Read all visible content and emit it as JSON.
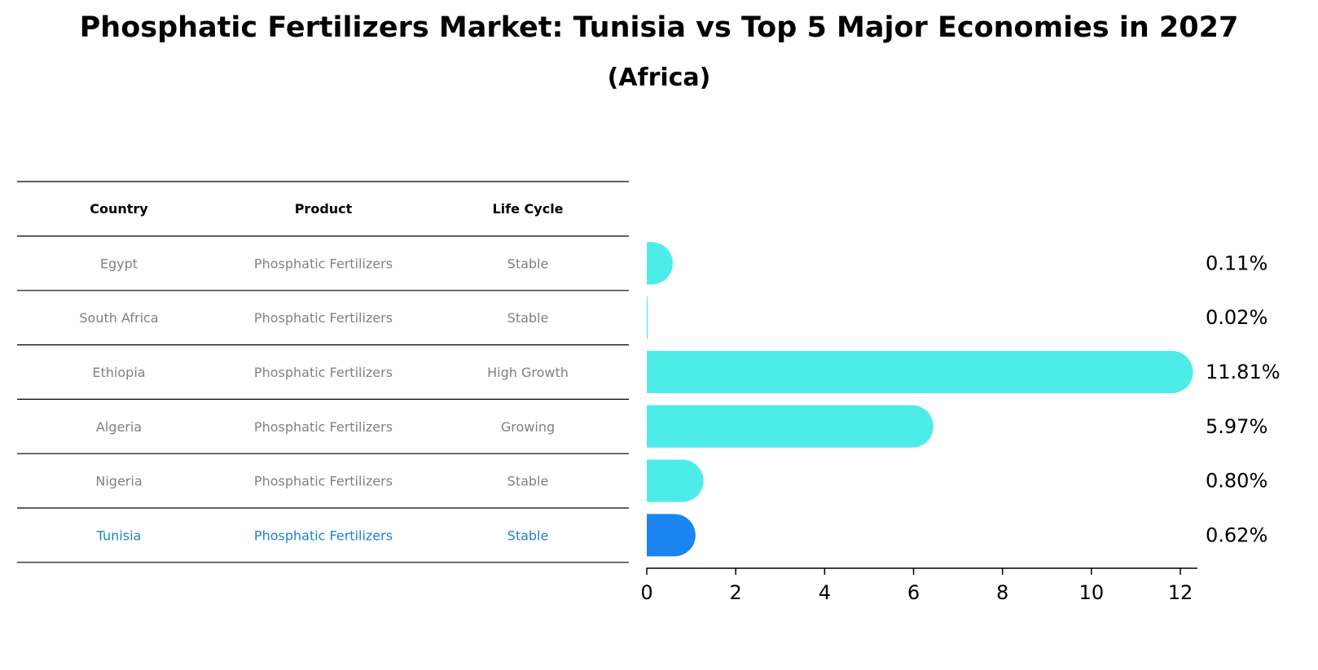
{
  "title": "Phosphatic Fertilizers Market: Tunisia vs Top 5 Major Economies in 2027",
  "subtitle": "(Africa)",
  "table": {
    "headers": [
      "Country",
      "Product",
      "Life Cycle"
    ],
    "rows": [
      {
        "country": "Egypt",
        "product": "Phosphatic Fertilizers",
        "life_cycle": "Stable",
        "highlight": false
      },
      {
        "country": "South Africa",
        "product": "Phosphatic Fertilizers",
        "life_cycle": "Stable",
        "highlight": false
      },
      {
        "country": "Ethiopia",
        "product": "Phosphatic Fertilizers",
        "life_cycle": "High Growth",
        "highlight": false
      },
      {
        "country": "Algeria",
        "product": "Phosphatic Fertilizers",
        "life_cycle": "Growing",
        "highlight": false
      },
      {
        "country": "Nigeria",
        "product": "Phosphatic Fertilizers",
        "life_cycle": "Stable",
        "highlight": false
      },
      {
        "country": "Tunisia",
        "product": "Phosphatic Fertilizers",
        "life_cycle": "Stable",
        "highlight": true
      }
    ]
  },
  "chart_data": {
    "type": "bar",
    "orientation": "horizontal",
    "categories": [
      "Egypt",
      "South Africa",
      "Ethiopia",
      "Algeria",
      "Nigeria",
      "Tunisia"
    ],
    "values": [
      0.11,
      0.02,
      11.81,
      5.97,
      0.8,
      0.62
    ],
    "data_labels": [
      "0.11%",
      "0.02%",
      "11.81%",
      "5.97%",
      "0.80%",
      "0.62%"
    ],
    "xlim": [
      0,
      12.4
    ],
    "x_ticks": [
      0,
      2,
      4,
      6,
      8,
      10,
      12
    ],
    "grid": false,
    "colors": {
      "default": "#4eece8",
      "highlight": "#1a84f0"
    }
  },
  "colors": {
    "text_muted": "#808080",
    "text_highlight": "#1a84c8",
    "header": "#000000"
  }
}
